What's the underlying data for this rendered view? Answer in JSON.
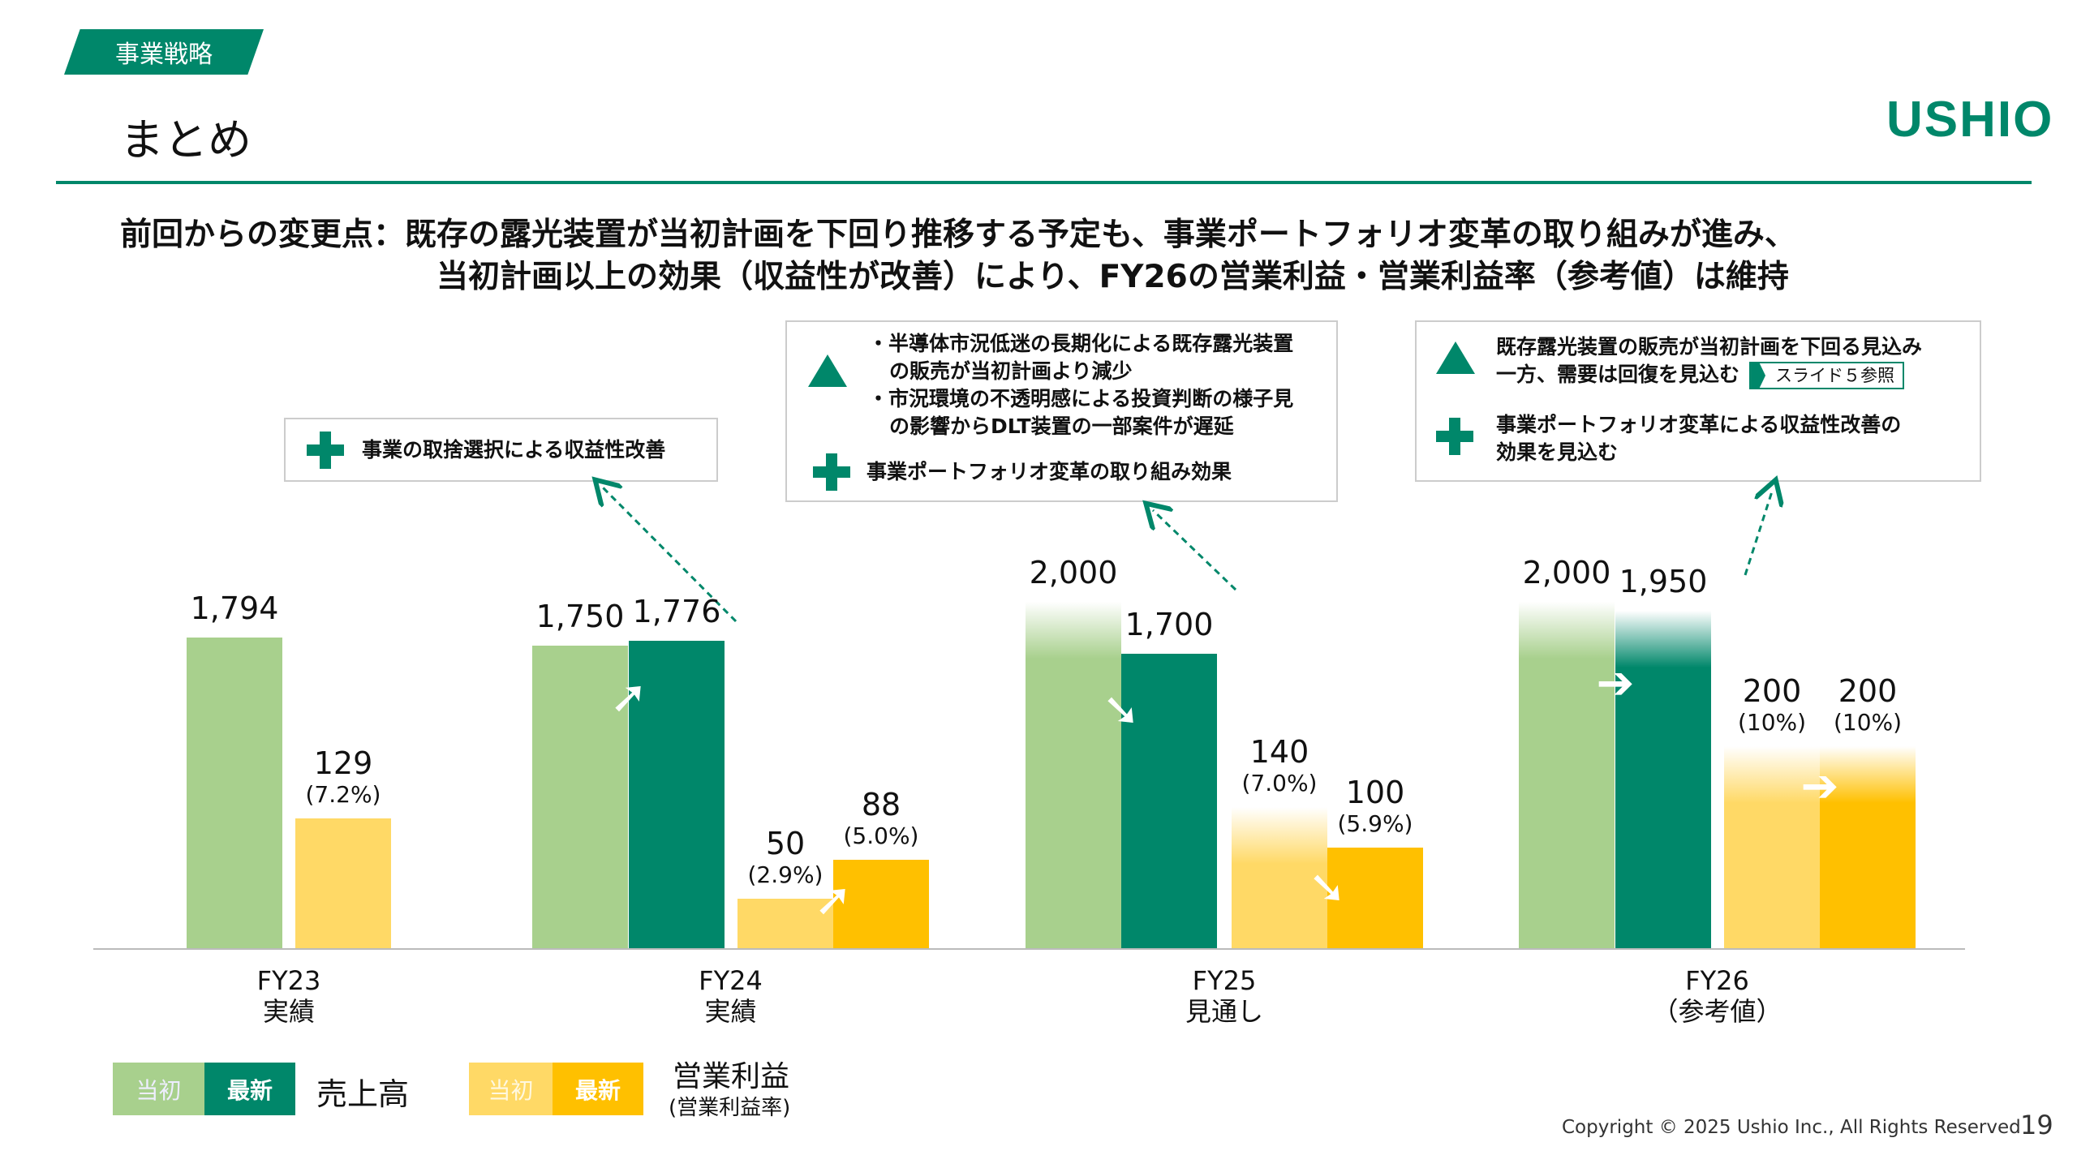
{
  "header": {
    "section_tag": "事業戦略",
    "title": "まとめ",
    "logo": "USHIO"
  },
  "headline": {
    "line1": "前回からの変更点：既存の露光装置が当初計画を下回り推移する予定も、事業ポートフォリオ変革の取り組みが進み、",
    "line2": "当初計画以上の効果（収益性が改善）により、FY26の営業利益・営業利益率（参考値）は維持"
  },
  "callouts": {
    "fy24": {
      "plus": "事業の取捨選択による収益性改善"
    },
    "fy25": {
      "minus1": "・半導体市況低迷の長期化による既存露光装置",
      "minus1b": "の販売が当初計画より減少",
      "minus2": "・市況環境の不透明感による投資判断の様子見",
      "minus2b": "の影響からDLT装置の一部案件が遅延",
      "plus": "事業ポートフォリオ変革の取り組み効果"
    },
    "fy26": {
      "minus": "既存露光装置の販売が当初計画を下回る見込み",
      "minusb": "一方、需要は回復を見込む",
      "ref": "スライド５参照",
      "plus": "事業ポートフォリオ変革による収益性改善の",
      "plusb": "効果を見込む"
    }
  },
  "chart_data": {
    "type": "bar",
    "categories": [
      {
        "l1": "FY23",
        "l2": "実績"
      },
      {
        "l1": "FY24",
        "l2": "実績"
      },
      {
        "l1": "FY25",
        "l2": "見通し"
      },
      {
        "l1": "FY26",
        "l2": "（参考値）"
      }
    ],
    "series": [
      {
        "name": "売上高 当初",
        "values": [
          1794,
          1750,
          2000,
          2000
        ],
        "labels": [
          "1,794",
          "1,750",
          "2,000",
          "2,000"
        ]
      },
      {
        "name": "売上高 最新",
        "values": [
          null,
          1776,
          1700,
          1950
        ],
        "labels": [
          null,
          "1,776",
          "1,700",
          "1,950"
        ]
      },
      {
        "name": "営業利益 当初",
        "values": [
          129,
          50,
          140,
          200
        ],
        "labels": [
          "129",
          "50",
          "140",
          "200"
        ],
        "margins": [
          "(7.2%)",
          "(2.9%)",
          "(7.0%)",
          "(10%)"
        ]
      },
      {
        "name": "営業利益 最新",
        "values": [
          null,
          88,
          100,
          200
        ],
        "labels": [
          null,
          "88",
          "100",
          "200"
        ],
        "margins": [
          null,
          "(5.0%)",
          "(5.9%)",
          "(10%)"
        ]
      }
    ],
    "colors": {
      "sales_initial": "#a8d08d",
      "sales_latest": "#00876a",
      "profit_initial": "#ffd966",
      "profit_latest": "#ffc000"
    }
  },
  "legend": {
    "initial": "当初",
    "latest": "最新",
    "sales": "売上高",
    "profit": "営業利益",
    "profit_sub": "(営業利益率)"
  },
  "footer": {
    "copyright": "Copyright © 2025 Ushio Inc., All Rights Reserved",
    "page": "19"
  }
}
